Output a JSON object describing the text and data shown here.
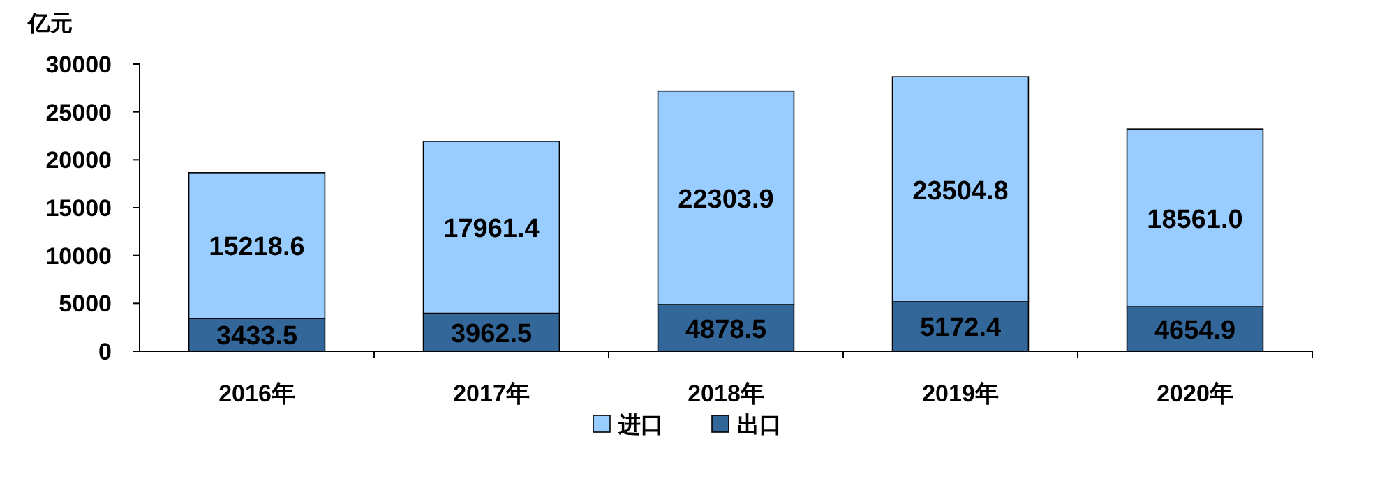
{
  "chart_data": {
    "type": "bar",
    "stacked": true,
    "ylabel": "亿元",
    "categories": [
      "2016年",
      "2017年",
      "2018年",
      "2019年",
      "2020年"
    ],
    "series": [
      {
        "name": "出口",
        "color": "#336699",
        "values": [
          3433.5,
          3962.5,
          4878.5,
          5172.4,
          4654.9
        ],
        "value_labels": [
          "3433.5",
          "3962.5",
          "4878.5",
          "5172.4",
          "4654.9"
        ]
      },
      {
        "name": "进口",
        "color": "#99ccff",
        "values": [
          15218.6,
          17961.4,
          22303.9,
          23504.8,
          18561.0
        ],
        "value_labels": [
          "15218.6",
          "17961.4",
          "22303.9",
          "23504.8",
          "18561.0"
        ]
      }
    ],
    "ylim": [
      0,
      30000
    ],
    "yticks": [
      0,
      5000,
      10000,
      15000,
      20000,
      25000,
      30000
    ],
    "grid": false,
    "legend": "bottom"
  }
}
